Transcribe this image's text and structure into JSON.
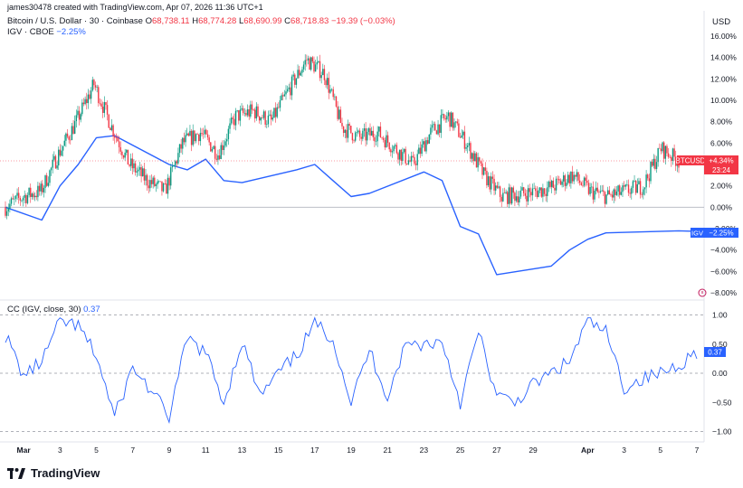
{
  "header": {
    "created_by": "james30478 created with TradingView.com, Apr 07, 2026 11:36 UTC+1",
    "symbol_line": "Bitcoin / U.S. Dollar · 30 · Coinbase",
    "ohlc": {
      "o_label": "O",
      "o": "68,738.11",
      "h_label": "H",
      "h": "68,774.28",
      "l_label": "L",
      "l": "68,690.99",
      "c_label": "C",
      "c": "68,718.83",
      "chg": "−19.39 (−0.03%)"
    },
    "compare_line": "IGV · CBOE",
    "compare_value": "−2.25%",
    "currency": "USD"
  },
  "indicator": {
    "label": "CC (IGV, close, 30)",
    "value": "0.37"
  },
  "badges": {
    "btc_label": "BTCUSD",
    "btc_value": "+4.34%",
    "btc_timer": "23:24",
    "igv_label": "IGV",
    "igv_value": "−2.25%",
    "cc_value": "0.37",
    "cc_upper": "0.50"
  },
  "brand": "TradingView",
  "colors": {
    "up": "#089981",
    "down": "#f23645",
    "igv": "#2962ff",
    "cc": "#2962ff",
    "grid": "#d1d4dc",
    "text": "#131722"
  },
  "chart_data": [
    {
      "type": "candlestick",
      "title": "Bitcoin / U.S. Dollar · 30 · Coinbase",
      "units": "percent change",
      "y_ticks": [
        "16.00%",
        "14.00%",
        "12.00%",
        "10.00%",
        "8.00%",
        "6.00%",
        "4.00%",
        "2.00%",
        "0.00%",
        "−2.00%",
        "−4.00%",
        "−6.00%",
        "−8.00%"
      ],
      "ylim": [
        -8.5,
        16.5
      ],
      "x_ticks": [
        "Mar",
        "3",
        "5",
        "7",
        "9",
        "11",
        "13",
        "15",
        "17",
        "19",
        "21",
        "23",
        "25",
        "27",
        "29",
        "Apr",
        "3",
        "5",
        "7"
      ],
      "series": [
        {
          "name": "BTCUSD",
          "x": [
            "Feb 28",
            "Mar 1",
            "Mar 2",
            "Mar 3",
            "Mar 4",
            "Mar 5",
            "Mar 6",
            "Mar 7",
            "Mar 8",
            "Mar 9",
            "Mar 10",
            "Mar 11",
            "Mar 12",
            "Mar 13",
            "Mar 14",
            "Mar 15",
            "Mar 16",
            "Mar 17",
            "Mar 18",
            "Mar 19",
            "Mar 20",
            "Mar 21",
            "Mar 22",
            "Mar 23",
            "Mar 24",
            "Mar 25",
            "Mar 26",
            "Mar 27",
            "Mar 28",
            "Mar 29",
            "Mar 30",
            "Mar 31",
            "Apr 1",
            "Apr 2",
            "Apr 3",
            "Apr 4",
            "Apr 5",
            "Apr 6",
            "Apr 7"
          ],
          "values": [
            0.0,
            1.0,
            1.5,
            5.0,
            8.0,
            11.5,
            7.5,
            4.0,
            2.5,
            1.5,
            6.0,
            7.0,
            5.0,
            8.5,
            9.0,
            8.0,
            11.0,
            13.8,
            12.5,
            7.5,
            6.5,
            7.0,
            5.5,
            4.0,
            7.0,
            8.5,
            6.0,
            3.0,
            1.0,
            1.2,
            1.5,
            2.0,
            3.0,
            1.5,
            1.0,
            1.5,
            2.0,
            5.5,
            4.34
          ]
        },
        {
          "name": "IGV",
          "x": [
            "Feb 28",
            "Mar 2",
            "Mar 3",
            "Mar 4",
            "Mar 5",
            "Mar 6",
            "Mar 9",
            "Mar 10",
            "Mar 11",
            "Mar 12",
            "Mar 13",
            "Mar 16",
            "Mar 17",
            "Mar 18",
            "Mar 19",
            "Mar 20",
            "Mar 23",
            "Mar 24",
            "Mar 25",
            "Mar 26",
            "Mar 27",
            "Mar 30",
            "Mar 31",
            "Apr 1",
            "Apr 2",
            "Apr 6",
            "Apr 7"
          ],
          "values": [
            0.0,
            -1.2,
            2.0,
            4.0,
            6.5,
            6.7,
            4.0,
            3.5,
            4.5,
            2.5,
            2.3,
            3.5,
            4.0,
            2.5,
            1.0,
            1.3,
            3.3,
            2.5,
            -1.8,
            -2.5,
            -6.3,
            -5.5,
            -4.0,
            -3.0,
            -2.4,
            -2.2,
            -2.25
          ]
        }
      ]
    },
    {
      "type": "line",
      "title": "CC (IGV, close, 30)",
      "y_ticks": [
        "1.00",
        "0.50",
        "0.00",
        "−0.50",
        "−1.00"
      ],
      "ylim": [
        -1.0,
        1.0
      ],
      "series": [
        {
          "name": "CC",
          "x": [
            "Feb 28",
            "Mar 1",
            "Mar 2",
            "Mar 3",
            "Mar 4",
            "Mar 5",
            "Mar 6",
            "Mar 7",
            "Mar 8",
            "Mar 9",
            "Mar 10",
            "Mar 11",
            "Mar 12",
            "Mar 13",
            "Mar 14",
            "Mar 15",
            "Mar 16",
            "Mar 17",
            "Mar 18",
            "Mar 19",
            "Mar 20",
            "Mar 21",
            "Mar 22",
            "Mar 23",
            "Mar 24",
            "Mar 25",
            "Mar 26",
            "Mar 27",
            "Mar 28",
            "Mar 29",
            "Mar 30",
            "Mar 31",
            "Apr 1",
            "Apr 2",
            "Apr 3",
            "Apr 4",
            "Apr 5",
            "Apr 6",
            "Apr 7"
          ],
          "values": [
            0.65,
            -0.05,
            0.2,
            0.9,
            0.8,
            0.3,
            -0.75,
            0.1,
            -0.3,
            -0.75,
            0.6,
            0.35,
            -0.5,
            0.55,
            -0.4,
            0.0,
            0.3,
            0.85,
            0.6,
            -0.5,
            0.4,
            -0.4,
            0.5,
            0.5,
            0.55,
            -0.5,
            0.7,
            -0.4,
            -0.5,
            -0.2,
            0.0,
            0.2,
            0.9,
            0.7,
            -0.25,
            -0.1,
            0.0,
            0.15,
            0.37
          ]
        }
      ]
    }
  ]
}
